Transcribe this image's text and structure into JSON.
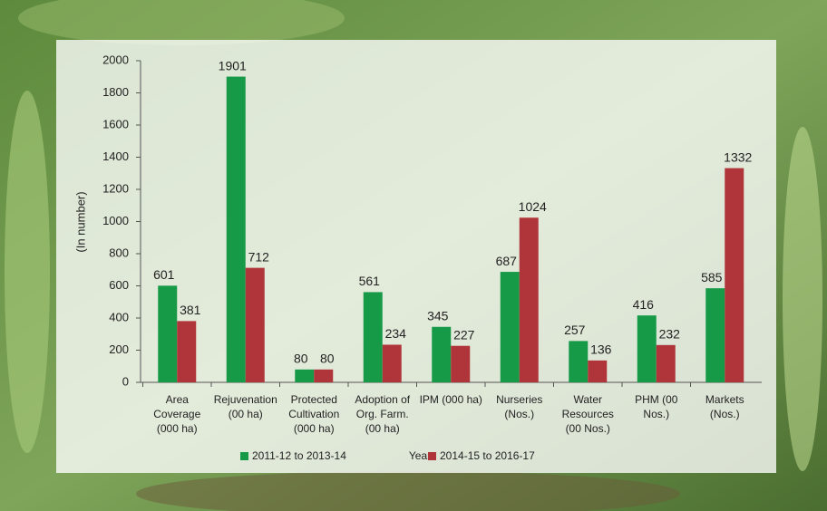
{
  "chart_data": {
    "type": "bar",
    "categories": [
      "Area Coverage (000 ha)",
      "Rejuvenation (00 ha)",
      "Protected Cultivation (000 ha)",
      "Adoption of Org. Farm. (00 ha)",
      "IPM (000 ha)",
      "Nurseries (Nos.)",
      "Water Resources (00 Nos.)",
      "PHM (00 Nos.)",
      "Markets (Nos.)"
    ],
    "series": [
      {
        "name": "2011-12 to 2013-14",
        "color": "#179a48",
        "values": [
          601,
          1901,
          80,
          561,
          345,
          687,
          257,
          416,
          585
        ]
      },
      {
        "name": "2014-15 to 2016-17",
        "color": "#b0353a",
        "values": [
          381,
          712,
          80,
          234,
          227,
          1024,
          136,
          232,
          1332
        ]
      }
    ],
    "x_label": "Year",
    "y_label": "(In number)",
    "ylim": [
      0,
      2000
    ],
    "yticks": [
      0,
      200,
      400,
      600,
      800,
      1000,
      1200,
      1400,
      1600,
      1800,
      2000
    ],
    "grid": false
  }
}
